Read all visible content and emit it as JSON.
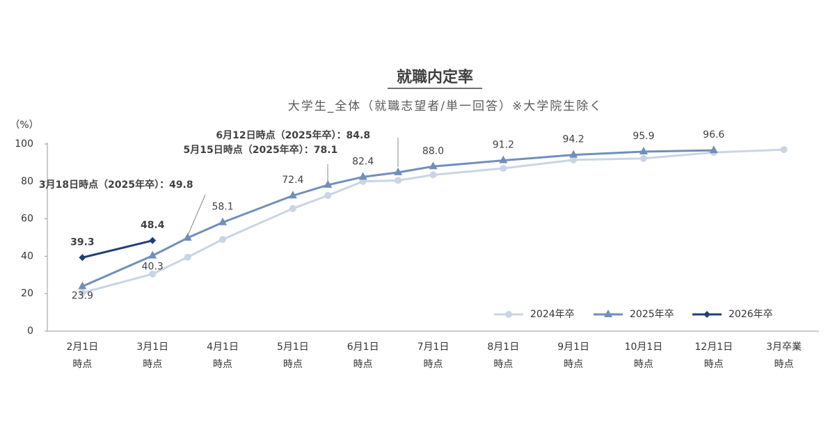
{
  "chart_data": {
    "type": "line",
    "title": "就職内定率",
    "subtitle": "大学生_全体（就職志望者/単一回答）※大学院生除く",
    "y_unit": "（%）",
    "categories": [
      [
        "2月1日",
        "時点"
      ],
      [
        "3月1日",
        "時点"
      ],
      [
        "4月1日",
        "時点"
      ],
      [
        "5月1日",
        "時点"
      ],
      [
        "6月1日",
        "時点"
      ],
      [
        "7月1日",
        "時点"
      ],
      [
        "8月1日",
        "時点"
      ],
      [
        "9月1日",
        "時点"
      ],
      [
        "10月1日",
        "時点"
      ],
      [
        "12月1日",
        "時点"
      ],
      [
        "3月卒業",
        "時点"
      ]
    ],
    "ylim": [
      0,
      100
    ],
    "yticks": [
      0,
      20,
      40,
      60,
      80,
      100
    ],
    "xlim": [
      -0.5,
      10.5
    ],
    "series": [
      {
        "name": "2024年卒",
        "color": "#c9d5e3",
        "marker": "circle",
        "x": [
          0,
          1,
          1.5,
          2,
          3,
          3.5,
          4,
          4.5,
          5,
          6,
          7,
          8,
          9,
          10
        ],
        "values": [
          20.5,
          30.5,
          39.5,
          49,
          65.5,
          72.5,
          80,
          80.5,
          83.5,
          87,
          91.5,
          92.3,
          95.5,
          97
        ]
      },
      {
        "name": "2025年卒",
        "color": "#6f8fbb",
        "marker": "triangle",
        "x": [
          0,
          1,
          1.5,
          2,
          3,
          3.5,
          4,
          4.5,
          5,
          6,
          7,
          8,
          9
        ],
        "values": [
          23.9,
          40.3,
          49.8,
          58.1,
          72.4,
          78.1,
          82.4,
          84.8,
          88.0,
          91.2,
          94.2,
          95.9,
          96.6
        ],
        "value_labels": [
          "23.9",
          "40.3",
          "3月18日時点（2025年卒）：49.8",
          "58.1",
          "72.4",
          "5月15日時点（2025年卒）：78.1",
          "82.4",
          "6月12日時点（2025年卒）：84.8",
          "88.0",
          "91.2",
          "94.2",
          "95.9",
          "96.6"
        ]
      },
      {
        "name": "2026年卒",
        "color": "#1f3f78",
        "marker": "diamond",
        "x": [
          0,
          1
        ],
        "values": [
          39.3,
          48.4
        ],
        "value_labels": [
          "39.3",
          "48.4"
        ]
      }
    ],
    "legend": "lower right"
  }
}
